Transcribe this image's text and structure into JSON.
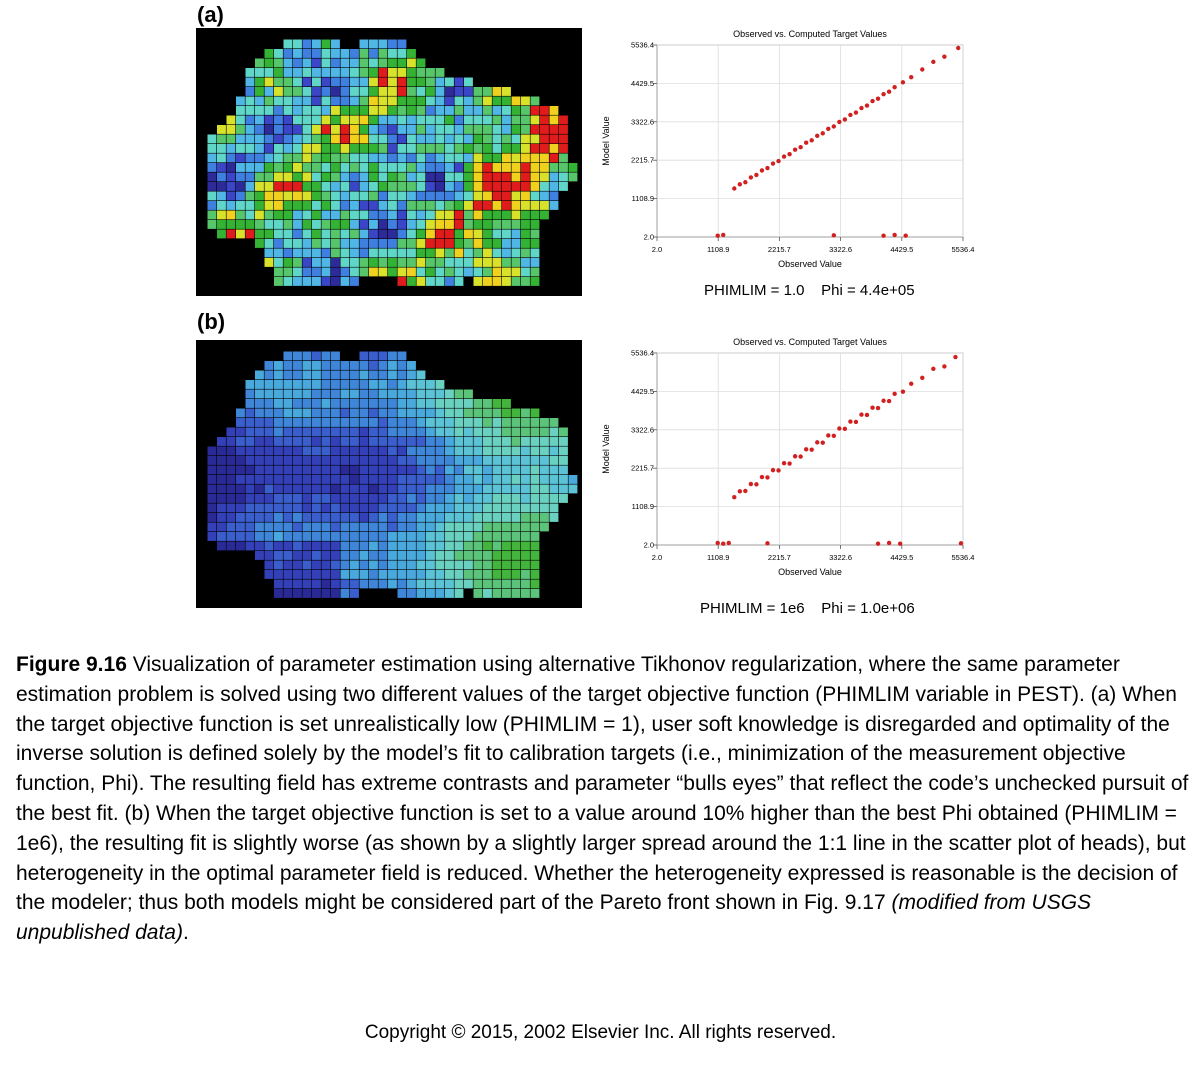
{
  "panels": [
    {
      "label": "(a)",
      "scatter": {
        "title": "Observed vs. Computed Target Values",
        "xlabel": "Observed Value",
        "ylabel": "Model Value",
        "ticks": [
          "2.0",
          "1108.9",
          "2215.7",
          "3322.6",
          "4429.5",
          "5536.4"
        ],
        "stats": "PHIMLIM = 1.0    Phi = 4.4e+05"
      }
    },
    {
      "label": "(b)",
      "scatter": {
        "title": "Observed vs. Computed Target Values",
        "xlabel": "Observed Value",
        "ylabel": "Model Value",
        "ticks": [
          "2.0",
          "1108.9",
          "2215.7",
          "3322.6",
          "4429.5",
          "5536.4"
        ],
        "stats": "PHIMLIM = 1e6    Phi = 1.0e+06"
      }
    }
  ],
  "chart_data": [
    {
      "type": "scatter",
      "title": "Observed vs. Computed Target Values",
      "xlabel": "Observed Value",
      "ylabel": "Model Value",
      "xlim": [
        2.0,
        5536.4
      ],
      "ylim": [
        2.0,
        5536.4
      ],
      "points": [
        [
          1400,
          1400
        ],
        [
          1500,
          1520
        ],
        [
          1600,
          1580
        ],
        [
          1700,
          1720
        ],
        [
          1800,
          1790
        ],
        [
          1900,
          1920
        ],
        [
          2000,
          1990
        ],
        [
          2100,
          2120
        ],
        [
          2200,
          2190
        ],
        [
          2300,
          2320
        ],
        [
          2400,
          2390
        ],
        [
          2500,
          2520
        ],
        [
          2600,
          2590
        ],
        [
          2700,
          2720
        ],
        [
          2800,
          2790
        ],
        [
          2900,
          2920
        ],
        [
          3000,
          2990
        ],
        [
          3100,
          3120
        ],
        [
          3200,
          3190
        ],
        [
          3300,
          3320
        ],
        [
          3400,
          3390
        ],
        [
          3500,
          3520
        ],
        [
          3600,
          3590
        ],
        [
          3700,
          3720
        ],
        [
          3800,
          3790
        ],
        [
          3900,
          3920
        ],
        [
          4000,
          3990
        ],
        [
          4100,
          4120
        ],
        [
          4200,
          4190
        ],
        [
          4300,
          4320
        ],
        [
          4450,
          4460
        ],
        [
          4600,
          4610
        ],
        [
          4800,
          4830
        ],
        [
          5000,
          5050
        ],
        [
          5200,
          5200
        ],
        [
          5450,
          5450
        ],
        [
          1100,
          40
        ],
        [
          1200,
          60
        ],
        [
          3200,
          50
        ],
        [
          4100,
          40
        ],
        [
          4300,
          60
        ],
        [
          4500,
          40
        ]
      ]
    },
    {
      "type": "scatter",
      "title": "Observed vs. Computed Target Values",
      "xlabel": "Observed Value",
      "ylabel": "Model Value",
      "xlim": [
        2.0,
        5536.4
      ],
      "ylim": [
        2.0,
        5536.4
      ],
      "points": [
        [
          1400,
          1380
        ],
        [
          1500,
          1550
        ],
        [
          1600,
          1560
        ],
        [
          1700,
          1760
        ],
        [
          1800,
          1750
        ],
        [
          1900,
          1960
        ],
        [
          2000,
          1950
        ],
        [
          2100,
          2160
        ],
        [
          2200,
          2150
        ],
        [
          2300,
          2360
        ],
        [
          2400,
          2350
        ],
        [
          2500,
          2560
        ],
        [
          2600,
          2550
        ],
        [
          2700,
          2760
        ],
        [
          2800,
          2750
        ],
        [
          2900,
          2960
        ],
        [
          3000,
          2950
        ],
        [
          3100,
          3160
        ],
        [
          3200,
          3150
        ],
        [
          3300,
          3360
        ],
        [
          3400,
          3350
        ],
        [
          3500,
          3560
        ],
        [
          3600,
          3550
        ],
        [
          3700,
          3760
        ],
        [
          3800,
          3750
        ],
        [
          3900,
          3960
        ],
        [
          4000,
          3950
        ],
        [
          4100,
          4160
        ],
        [
          4200,
          4150
        ],
        [
          4300,
          4360
        ],
        [
          4450,
          4420
        ],
        [
          4600,
          4650
        ],
        [
          4800,
          4820
        ],
        [
          5000,
          5080
        ],
        [
          5200,
          5150
        ],
        [
          5400,
          5420
        ],
        [
          1100,
          60
        ],
        [
          1200,
          40
        ],
        [
          1300,
          60
        ],
        [
          2000,
          50
        ],
        [
          4000,
          40
        ],
        [
          4200,
          60
        ],
        [
          4400,
          40
        ],
        [
          5500,
          50
        ]
      ]
    }
  ],
  "maps": [
    {
      "palette": [
        "#2d2a9a",
        "#3a45c8",
        "#3f7fe0",
        "#4fb6e6",
        "#5fd6c8",
        "#57c66a",
        "#34b234",
        "#d8e22a",
        "#f0d21e",
        "#e01b1b"
      ]
    },
    {
      "palette": [
        "#2a2a96",
        "#3340b8",
        "#3a5ecc",
        "#3f86d8",
        "#49a8dc",
        "#5cc3d6",
        "#6ad1c0",
        "#5cc37a",
        "#44b53c",
        "#c9d83a"
      ]
    }
  ],
  "caption": {
    "fig_label": "Figure 9.16",
    "text_1": " Visualization of parameter estimation using alternative Tikhonov regularization, where the same parameter estimation problem is solved using two different values of the target objective function (PHIMLIM variable in PEST). (a) When the target objective function is set unrealistically low (PHIMLIM = 1), user soft knowledge is disregarded and optimality of the inverse solution is defined solely by the model’s fit to calibration targets (i.e., minimization of the measurement objective function, Phi). The resulting field has extreme contrasts and parameter “bulls eyes” that reflect the code’s unchecked pursuit of the best fit. (b) When the target objective function is set to a value around 10% higher than the best Phi obtained (PHIMLIM = 1e6), the resulting fit is slightly worse (as shown by a slightly larger spread around the 1:1 line in the scatter plot of heads), but heterogeneity in the optimal parameter field is reduced. Whether the heterogeneity expressed is reasonable is the decision of the modeler; thus both models might be considered part of the Pareto front shown in Fig. 9.17 ",
    "source": "(modified from USGS unpublished data)",
    "end": "."
  },
  "copyright": "Copyright © 2015, 2002 Elsevier Inc. All rights reserved."
}
